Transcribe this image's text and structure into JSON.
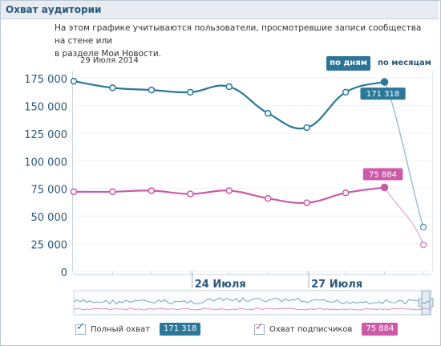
{
  "header": {
    "title": "Охват аудитории"
  },
  "description": {
    "line1": "На этом графике учитываются пользователи, просмотревшие записи сообщества на стене или",
    "line2": "в разделе Мои Новости."
  },
  "date_label": "29 Июля 2014",
  "toggle": {
    "days_label": "по дням",
    "months_label": "по месяцам",
    "active": "days"
  },
  "colors": {
    "total": "#2b7898",
    "subscribers": "#cc5aa6",
    "axis_text": "#2b587a"
  },
  "chart_data": {
    "type": "line",
    "ylim": [
      0,
      175000
    ],
    "y_ticks": [
      "175 000",
      "150 000",
      "125 000",
      "100 000",
      "75 000",
      "50 000",
      "25 000",
      "0"
    ],
    "y_tick_values": [
      175000,
      150000,
      125000,
      100000,
      75000,
      50000,
      25000,
      0
    ],
    "x_labels": [
      {
        "label": "24 Июля",
        "index": 3.05
      },
      {
        "label": "27 Июля",
        "index": 6.05
      }
    ],
    "series": [
      {
        "name": "Полный охват",
        "values": [
          172000,
          166000,
          164000,
          162000,
          167000,
          143000,
          130000,
          162000,
          171318,
          40000
        ],
        "callout": "171 318",
        "callout_index": 8
      },
      {
        "name": "Охват подписчиков",
        "values": [
          72000,
          72000,
          73000,
          70000,
          73000,
          66000,
          62000,
          71000,
          75884,
          24000
        ],
        "callout": "75 884",
        "callout_index": 8
      }
    ]
  },
  "legend": {
    "total_label": "Полный охват",
    "total_value": "171 318",
    "subs_label": "Охват подписчиков",
    "subs_value": "75 884"
  }
}
